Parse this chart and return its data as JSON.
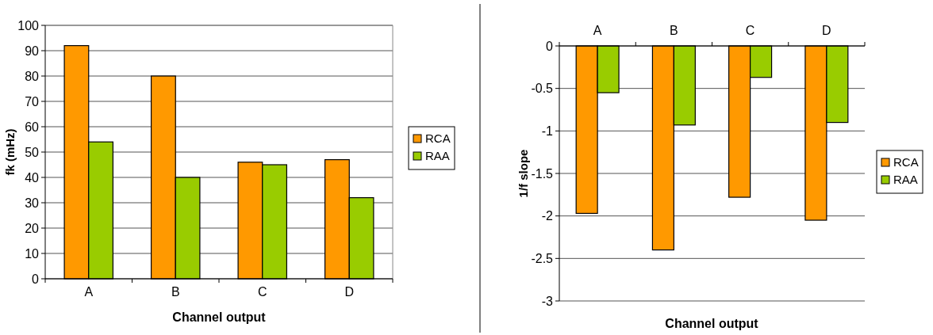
{
  "chart_data": [
    {
      "type": "bar",
      "xlabel": "Channel output",
      "ylabel": "fk (mHz)",
      "categories": [
        "A",
        "B",
        "C",
        "D"
      ],
      "series": [
        {
          "name": "RCA",
          "color": "#ff9900",
          "values": [
            92,
            80,
            46,
            47
          ]
        },
        {
          "name": "RAA",
          "color": "#99cc00",
          "values": [
            54,
            40,
            45,
            32
          ]
        }
      ],
      "ylim": [
        0,
        100
      ],
      "yticks": [
        0,
        10,
        20,
        30,
        40,
        50,
        60,
        70,
        80,
        90,
        100
      ],
      "grid": "y",
      "legend": "right"
    },
    {
      "type": "bar",
      "xlabel": "Channel output",
      "ylabel": "1/f slope",
      "categories": [
        "A",
        "B",
        "C",
        "D"
      ],
      "series": [
        {
          "name": "RCA",
          "color": "#ff9900",
          "values": [
            -1.97,
            -2.4,
            -1.78,
            -2.05
          ]
        },
        {
          "name": "RAA",
          "color": "#99cc00",
          "values": [
            -0.55,
            -0.93,
            -0.37,
            -0.9
          ]
        }
      ],
      "ylim": [
        -3,
        0
      ],
      "yticks": [
        -3,
        -2.5,
        -2,
        -1.5,
        -1,
        -0.5,
        0
      ],
      "grid": "y",
      "legend": "right"
    }
  ]
}
